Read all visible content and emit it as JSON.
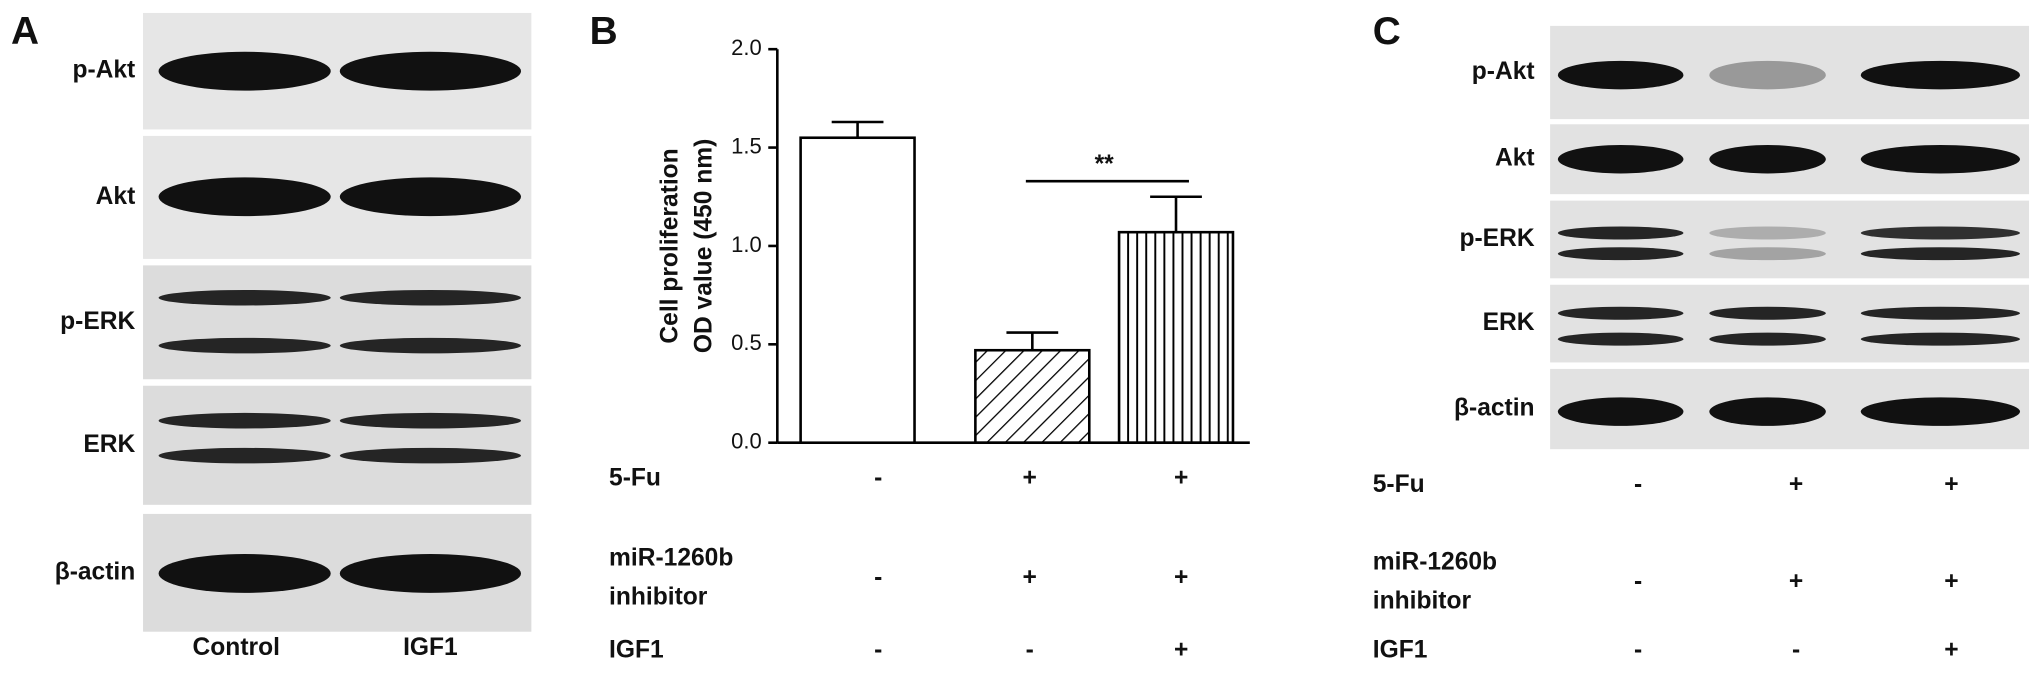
{
  "panel_a": {
    "label": "A",
    "rows": [
      "p-Akt",
      "Akt",
      "p-ERK",
      "ERK",
      "β-actin"
    ],
    "lanes": [
      "Control",
      "IGF1"
    ]
  },
  "chart_data": {
    "type": "bar",
    "panel_label": "B",
    "y_label": [
      "Cell proliferation",
      "OD value (450 nm)"
    ],
    "categories": [
      null,
      null,
      null
    ],
    "values": [
      1.55,
      0.47,
      1.07
    ],
    "errors": [
      0.08,
      0.09,
      0.18
    ],
    "patterns": [
      "none",
      "diagonal",
      "vertical"
    ],
    "color": "#000000",
    "ylim": [
      0,
      2
    ],
    "yticks": [
      {
        "value": 0,
        "label": "0.0"
      },
      0.5,
      {
        "value": 1,
        "label": "1.0"
      },
      1.5,
      {
        "value": 2,
        "label": "2.0"
      }
    ],
    "annotation": "**",
    "conditions": [
      {
        "label": [
          "5-Fu"
        ],
        "marks": [
          "-",
          "+",
          "+"
        ]
      },
      {
        "label": [
          "miR-1260b",
          "inhibitor"
        ],
        "marks": [
          "-",
          "+",
          "+"
        ]
      },
      {
        "label": [
          "IGF1"
        ],
        "marks": [
          "-",
          "-",
          "+"
        ]
      }
    ]
  },
  "panel_c": {
    "label": "C",
    "rows": [
      "p-Akt",
      "Akt",
      "p-ERK",
      "ERK",
      "β-actin"
    ],
    "conditions": [
      {
        "label": [
          "5-Fu"
        ],
        "marks": [
          "-",
          "+",
          "+"
        ]
      },
      {
        "label": [
          "miR-1260b",
          "inhibitor"
        ],
        "marks": [
          "-",
          "+",
          "+"
        ]
      },
      {
        "label": [
          "IGF1"
        ],
        "marks": [
          "-",
          "-",
          "+"
        ]
      }
    ]
  }
}
